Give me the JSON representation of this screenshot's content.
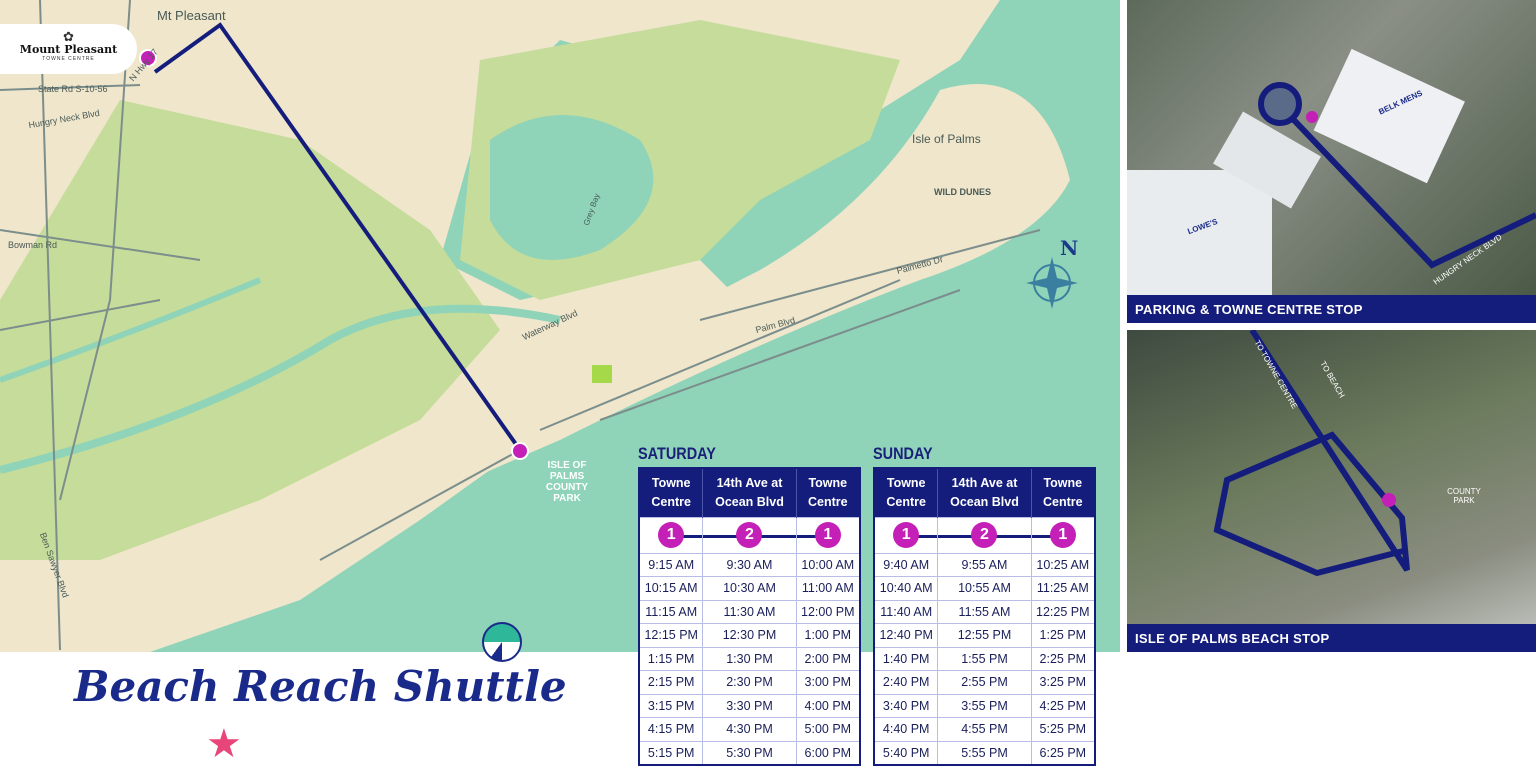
{
  "logo": {
    "name": "Mount Pleasant",
    "sub": "TOWNE CENTRE"
  },
  "map_labels": {
    "mt_pleasant": "Mt Pleasant",
    "state_rd": "State Rd S-10-56",
    "n_hwy": "N Hwy 17",
    "hungry_neck": "Hungry Neck Blvd",
    "bowman": "Bowman Rd",
    "grey_bay": "Grey Bay",
    "isle_of_palms": "Isle of Palms",
    "wild_dunes": "WILD DUNES",
    "palmetto_dr": "Palmetto Dr",
    "waterway": "Waterway Blvd",
    "palm_blvd": "Palm Blvd",
    "ben_sawyer": "Ben Sawyer Blvd",
    "county_park": "ISLE OF PALMS COUNTY PARK",
    "compass_n": "N"
  },
  "colors": {
    "route": "#141d7c",
    "stop": "#c41fb7",
    "water": "#8fd3b8",
    "land": "#efe6cc",
    "marsh": "#c6dc9a"
  },
  "title": "Beach Reach Shuttle",
  "schedules": [
    {
      "day": "SATURDAY",
      "headers": [
        "Towne Centre",
        "14th Ave at Ocean Blvd",
        "Towne Centre"
      ],
      "stops": [
        "1",
        "2",
        "1"
      ],
      "rows": [
        [
          "9:15 AM",
          "9:30 AM",
          "10:00 AM"
        ],
        [
          "10:15 AM",
          "10:30 AM",
          "11:00 AM"
        ],
        [
          "11:15 AM",
          "11:30 AM",
          "12:00 PM"
        ],
        [
          "12:15 PM",
          "12:30 PM",
          "1:00 PM"
        ],
        [
          "1:15 PM",
          "1:30 PM",
          "2:00 PM"
        ],
        [
          "2:15 PM",
          "2:30 PM",
          "3:00 PM"
        ],
        [
          "3:15 PM",
          "3:30 PM",
          "4:00 PM"
        ],
        [
          "4:15 PM",
          "4:30 PM",
          "5:00 PM"
        ],
        [
          "5:15 PM",
          "5:30 PM",
          "6:00 PM"
        ]
      ]
    },
    {
      "day": "SUNDAY",
      "headers": [
        "Towne Centre",
        "14th Ave at Ocean Blvd",
        "Towne Centre"
      ],
      "stops": [
        "1",
        "2",
        "1"
      ],
      "rows": [
        [
          "9:40 AM",
          "9:55 AM",
          "10:25 AM"
        ],
        [
          "10:40 AM",
          "10:55 AM",
          "11:25 AM"
        ],
        [
          "11:40 AM",
          "11:55 AM",
          "12:25 PM"
        ],
        [
          "12:40 PM",
          "12:55 PM",
          "1:25 PM"
        ],
        [
          "1:40 PM",
          "1:55 PM",
          "2:25 PM"
        ],
        [
          "2:40 PM",
          "2:55 PM",
          "3:25 PM"
        ],
        [
          "3:40 PM",
          "3:55 PM",
          "4:25 PM"
        ],
        [
          "4:40 PM",
          "4:55 PM",
          "5:25 PM"
        ],
        [
          "5:40 PM",
          "5:55 PM",
          "6:25 PM"
        ]
      ]
    }
  ],
  "aerials": [
    {
      "caption": "PARKING & TOWNE CENTRE STOP",
      "labels": [
        "BELK MENS",
        "LOWE'S",
        "HUNGRY NECK BLVD"
      ],
      "stop": "1"
    },
    {
      "caption": "ISLE OF PALMS BEACH STOP",
      "labels": [
        "TO TOWNE CENTRE",
        "TO BEACH",
        "COUNTY PARK"
      ],
      "stop": "2"
    }
  ]
}
